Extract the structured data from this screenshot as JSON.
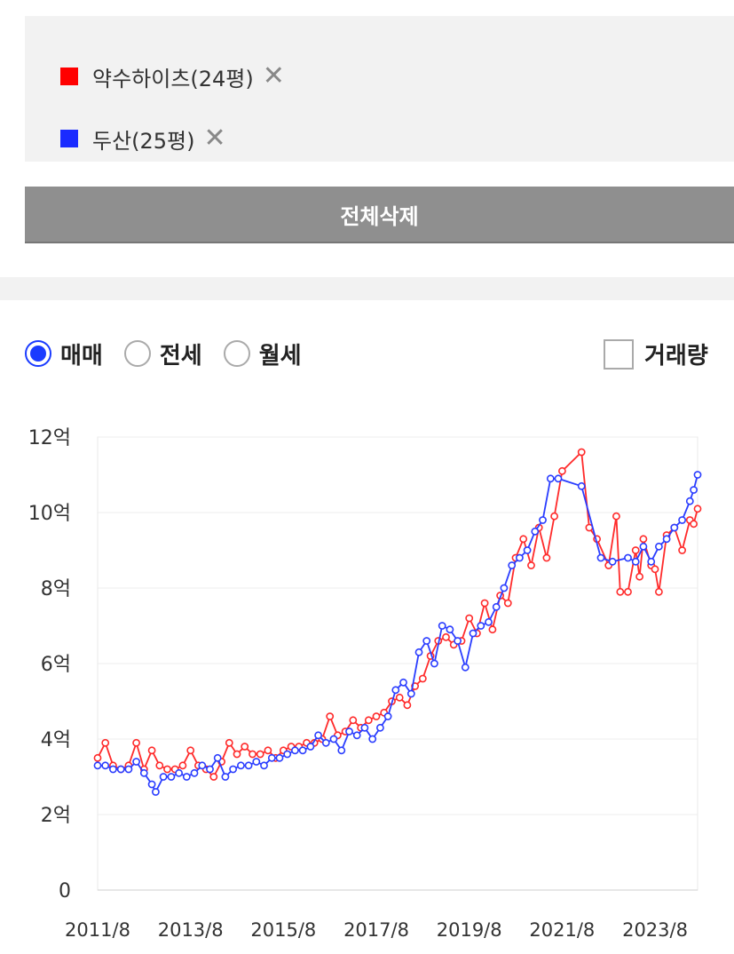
{
  "legend": {
    "items": [
      {
        "label": "약수하이츠(24평)",
        "color": "#ff0000",
        "icon": "close-icon"
      },
      {
        "label": "두산(25평)",
        "color": "#1a2bff",
        "icon": "close-icon"
      }
    ]
  },
  "delete_all_label": "전체삭제",
  "trade_type": {
    "options": [
      "매매",
      "전세",
      "월세"
    ],
    "selected": "매매"
  },
  "volume_label": "거래량",
  "chart_data": {
    "type": "line",
    "title": "",
    "xlabel": "",
    "ylabel": "",
    "x_ticks": [
      "2011/8",
      "2013/8",
      "2015/8",
      "2017/8",
      "2019/8",
      "2021/8",
      "2023/8"
    ],
    "y_ticks": [
      "0",
      "2억",
      "4억",
      "6억",
      "8억",
      "10억",
      "12억"
    ],
    "ylim": [
      0,
      12
    ],
    "y_unit": "억",
    "grid": true,
    "series": [
      {
        "name": "약수하이츠(24평)",
        "color": "#ff2a2a",
        "points": [
          [
            "2011-08",
            3.5
          ],
          [
            "2011-10",
            3.9
          ],
          [
            "2011-12",
            3.3
          ],
          [
            "2012-02",
            3.2
          ],
          [
            "2012-04",
            3.3
          ],
          [
            "2012-06",
            3.9
          ],
          [
            "2012-08",
            3.2
          ],
          [
            "2012-10",
            3.7
          ],
          [
            "2012-12",
            3.3
          ],
          [
            "2013-02",
            3.2
          ],
          [
            "2013-04",
            3.2
          ],
          [
            "2013-06",
            3.3
          ],
          [
            "2013-08",
            3.7
          ],
          [
            "2013-10",
            3.3
          ],
          [
            "2013-12",
            3.2
          ],
          [
            "2014-02",
            3.0
          ],
          [
            "2014-04",
            3.4
          ],
          [
            "2014-06",
            3.9
          ],
          [
            "2014-08",
            3.6
          ],
          [
            "2014-10",
            3.8
          ],
          [
            "2014-12",
            3.6
          ],
          [
            "2015-02",
            3.6
          ],
          [
            "2015-04",
            3.7
          ],
          [
            "2015-06",
            3.5
          ],
          [
            "2015-08",
            3.7
          ],
          [
            "2015-10",
            3.8
          ],
          [
            "2015-12",
            3.8
          ],
          [
            "2016-02",
            3.9
          ],
          [
            "2016-04",
            3.9
          ],
          [
            "2016-06",
            4.0
          ],
          [
            "2016-08",
            4.6
          ],
          [
            "2016-10",
            4.1
          ],
          [
            "2016-12",
            4.2
          ],
          [
            "2017-02",
            4.5
          ],
          [
            "2017-04",
            4.3
          ],
          [
            "2017-06",
            4.5
          ],
          [
            "2017-08",
            4.6
          ],
          [
            "2017-10",
            4.7
          ],
          [
            "2017-12",
            5.0
          ],
          [
            "2018-02",
            5.1
          ],
          [
            "2018-04",
            4.9
          ],
          [
            "2018-06",
            5.4
          ],
          [
            "2018-08",
            5.6
          ],
          [
            "2018-10",
            6.2
          ],
          [
            "2018-12",
            6.6
          ],
          [
            "2019-02",
            6.7
          ],
          [
            "2019-04",
            6.5
          ],
          [
            "2019-06",
            6.6
          ],
          [
            "2019-08",
            7.2
          ],
          [
            "2019-10",
            6.8
          ],
          [
            "2019-12",
            7.6
          ],
          [
            "2020-02",
            6.9
          ],
          [
            "2020-04",
            7.8
          ],
          [
            "2020-06",
            7.6
          ],
          [
            "2020-08",
            8.8
          ],
          [
            "2020-10",
            9.3
          ],
          [
            "2020-12",
            8.6
          ],
          [
            "2021-02",
            9.6
          ],
          [
            "2021-04",
            8.8
          ],
          [
            "2021-06",
            9.9
          ],
          [
            "2021-08",
            11.1
          ],
          [
            "2022-01",
            11.6
          ],
          [
            "2022-03",
            9.6
          ],
          [
            "2022-05",
            9.3
          ],
          [
            "2022-08",
            8.6
          ],
          [
            "2022-10",
            9.9
          ],
          [
            "2022-11",
            7.9
          ],
          [
            "2023-01",
            7.9
          ],
          [
            "2023-03",
            9.0
          ],
          [
            "2023-04",
            8.3
          ],
          [
            "2023-05",
            9.3
          ],
          [
            "2023-07",
            8.6
          ],
          [
            "2023-08",
            8.5
          ],
          [
            "2023-09",
            7.9
          ],
          [
            "2023-11",
            9.4
          ],
          [
            "2024-01",
            9.6
          ],
          [
            "2024-03",
            9.0
          ],
          [
            "2024-05",
            9.8
          ],
          [
            "2024-06",
            9.7
          ],
          [
            "2024-07",
            10.1
          ]
        ]
      },
      {
        "name": "두산(25평)",
        "color": "#2a3dff",
        "points": [
          [
            "2011-08",
            3.3
          ],
          [
            "2011-10",
            3.3
          ],
          [
            "2011-12",
            3.2
          ],
          [
            "2012-02",
            3.2
          ],
          [
            "2012-04",
            3.2
          ],
          [
            "2012-06",
            3.4
          ],
          [
            "2012-08",
            3.1
          ],
          [
            "2012-10",
            2.8
          ],
          [
            "2012-11",
            2.6
          ],
          [
            "2013-01",
            3.0
          ],
          [
            "2013-03",
            3.0
          ],
          [
            "2013-05",
            3.1
          ],
          [
            "2013-07",
            3.0
          ],
          [
            "2013-09",
            3.1
          ],
          [
            "2013-11",
            3.3
          ],
          [
            "2014-01",
            3.2
          ],
          [
            "2014-03",
            3.5
          ],
          [
            "2014-05",
            3.0
          ],
          [
            "2014-07",
            3.2
          ],
          [
            "2014-09",
            3.3
          ],
          [
            "2014-11",
            3.3
          ],
          [
            "2015-01",
            3.4
          ],
          [
            "2015-03",
            3.3
          ],
          [
            "2015-05",
            3.5
          ],
          [
            "2015-07",
            3.5
          ],
          [
            "2015-09",
            3.6
          ],
          [
            "2015-11",
            3.7
          ],
          [
            "2016-01",
            3.7
          ],
          [
            "2016-03",
            3.8
          ],
          [
            "2016-05",
            4.1
          ],
          [
            "2016-07",
            3.9
          ],
          [
            "2016-09",
            4.0
          ],
          [
            "2016-11",
            3.7
          ],
          [
            "2017-01",
            4.2
          ],
          [
            "2017-03",
            4.1
          ],
          [
            "2017-05",
            4.3
          ],
          [
            "2017-07",
            4.0
          ],
          [
            "2017-09",
            4.3
          ],
          [
            "2017-11",
            4.6
          ],
          [
            "2018-01",
            5.3
          ],
          [
            "2018-03",
            5.5
          ],
          [
            "2018-05",
            5.2
          ],
          [
            "2018-07",
            6.3
          ],
          [
            "2018-09",
            6.6
          ],
          [
            "2018-11",
            6.0
          ],
          [
            "2019-01",
            7.0
          ],
          [
            "2019-03",
            6.9
          ],
          [
            "2019-05",
            6.6
          ],
          [
            "2019-07",
            5.9
          ],
          [
            "2019-09",
            6.8
          ],
          [
            "2019-11",
            7.0
          ],
          [
            "2020-01",
            7.1
          ],
          [
            "2020-03",
            7.5
          ],
          [
            "2020-05",
            8.0
          ],
          [
            "2020-07",
            8.6
          ],
          [
            "2020-09",
            8.8
          ],
          [
            "2020-11",
            9.0
          ],
          [
            "2021-01",
            9.5
          ],
          [
            "2021-03",
            9.8
          ],
          [
            "2021-05",
            10.9
          ],
          [
            "2021-07",
            10.9
          ],
          [
            "2022-01",
            10.7
          ],
          [
            "2022-06",
            8.8
          ],
          [
            "2022-09",
            8.7
          ],
          [
            "2023-01",
            8.8
          ],
          [
            "2023-03",
            8.7
          ],
          [
            "2023-05",
            9.1
          ],
          [
            "2023-07",
            8.7
          ],
          [
            "2023-09",
            9.1
          ],
          [
            "2023-11",
            9.3
          ],
          [
            "2024-01",
            9.6
          ],
          [
            "2024-03",
            9.8
          ],
          [
            "2024-05",
            10.3
          ],
          [
            "2024-06",
            10.6
          ],
          [
            "2024-07",
            11.0
          ]
        ]
      }
    ]
  }
}
